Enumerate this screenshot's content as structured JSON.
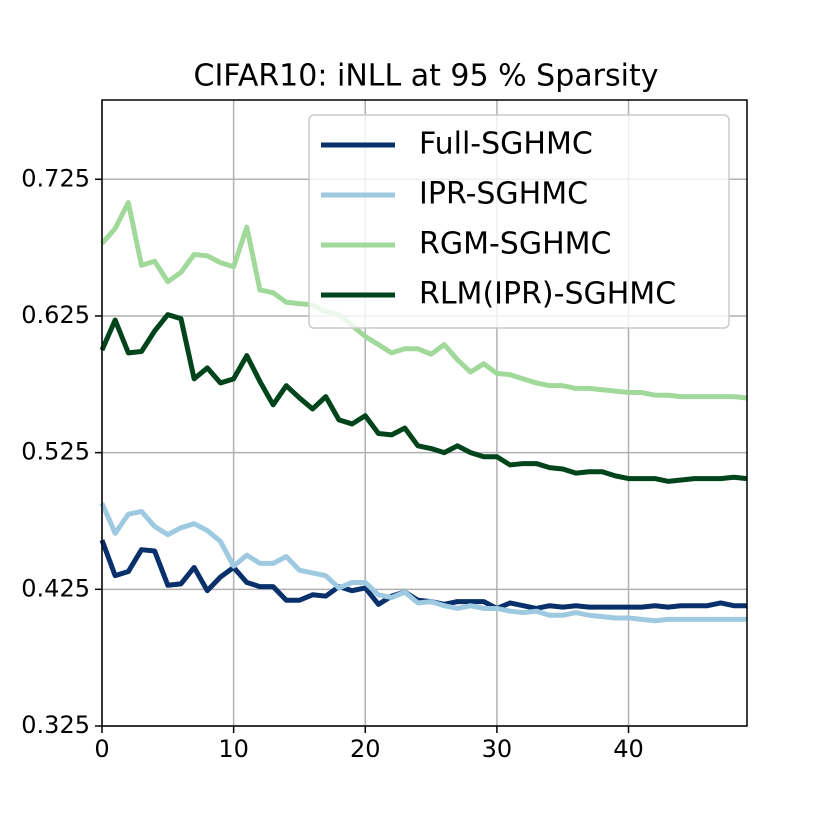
{
  "chart_data": {
    "type": "line",
    "title": "CIFAR10: iNLL at 95 % Sparsity",
    "x": [
      0,
      1,
      2,
      3,
      4,
      5,
      6,
      7,
      8,
      9,
      10,
      11,
      12,
      13,
      14,
      15,
      16,
      17,
      18,
      19,
      20,
      21,
      22,
      23,
      24,
      25,
      26,
      27,
      28,
      29,
      30,
      31,
      32,
      33,
      34,
      35,
      36,
      37,
      38,
      39,
      40,
      41,
      42,
      43,
      44,
      45,
      46,
      47,
      48,
      49
    ],
    "xlim": [
      0,
      49
    ],
    "xticks": [
      0,
      10,
      20,
      30,
      40
    ],
    "ylim": [
      0.325,
      0.783
    ],
    "yticks": [
      0.325,
      0.425,
      0.525,
      0.625,
      0.725
    ],
    "grid": true,
    "legend": "upper right",
    "series": [
      {
        "name": "Full-SGHMC",
        "color": "#08306b",
        "values": [
          0.461,
          0.435,
          0.438,
          0.454,
          0.453,
          0.428,
          0.429,
          0.441,
          0.424,
          0.434,
          0.441,
          0.43,
          0.427,
          0.427,
          0.417,
          0.417,
          0.421,
          0.42,
          0.427,
          0.424,
          0.426,
          0.414,
          0.42,
          0.423,
          0.417,
          0.416,
          0.414,
          0.416,
          0.416,
          0.416,
          0.411,
          0.415,
          0.413,
          0.411,
          0.413,
          0.412,
          0.413,
          0.412,
          0.412,
          0.412,
          0.412,
          0.412,
          0.413,
          0.412,
          0.413,
          0.413,
          0.413,
          0.415,
          0.413,
          0.413
        ]
      },
      {
        "name": "IPR-SGHMC",
        "color": "#9ecae1",
        "values": [
          0.488,
          0.466,
          0.48,
          0.482,
          0.471,
          0.465,
          0.47,
          0.473,
          0.468,
          0.46,
          0.442,
          0.45,
          0.444,
          0.444,
          0.449,
          0.439,
          0.437,
          0.435,
          0.426,
          0.43,
          0.43,
          0.421,
          0.419,
          0.423,
          0.415,
          0.416,
          0.413,
          0.411,
          0.413,
          0.411,
          0.411,
          0.409,
          0.408,
          0.409,
          0.406,
          0.406,
          0.408,
          0.406,
          0.405,
          0.404,
          0.404,
          0.403,
          0.402,
          0.403,
          0.403,
          0.403,
          0.403,
          0.403,
          0.403,
          0.403
        ]
      },
      {
        "name": "RGM-SGHMC",
        "color": "#a1d99b",
        "values": [
          0.678,
          0.689,
          0.708,
          0.662,
          0.665,
          0.65,
          0.657,
          0.67,
          0.669,
          0.664,
          0.661,
          0.69,
          0.644,
          0.642,
          0.635,
          0.634,
          0.633,
          0.628,
          0.626,
          0.618,
          0.61,
          0.604,
          0.598,
          0.601,
          0.601,
          0.597,
          0.604,
          0.593,
          0.584,
          0.59,
          0.583,
          0.582,
          0.579,
          0.576,
          0.574,
          0.574,
          0.572,
          0.572,
          0.571,
          0.57,
          0.569,
          0.569,
          0.567,
          0.567,
          0.566,
          0.566,
          0.566,
          0.566,
          0.566,
          0.565
        ]
      },
      {
        "name": "RLM(IPR)-SGHMC",
        "color": "#00441b",
        "values": [
          0.6,
          0.622,
          0.598,
          0.599,
          0.614,
          0.626,
          0.623,
          0.579,
          0.587,
          0.576,
          0.579,
          0.596,
          0.577,
          0.56,
          0.574,
          0.565,
          0.557,
          0.566,
          0.549,
          0.546,
          0.552,
          0.539,
          0.538,
          0.543,
          0.53,
          0.528,
          0.525,
          0.53,
          0.525,
          0.522,
          0.522,
          0.516,
          0.517,
          0.517,
          0.514,
          0.513,
          0.51,
          0.511,
          0.511,
          0.508,
          0.506,
          0.506,
          0.506,
          0.504,
          0.505,
          0.506,
          0.506,
          0.506,
          0.507,
          0.506
        ]
      }
    ]
  }
}
